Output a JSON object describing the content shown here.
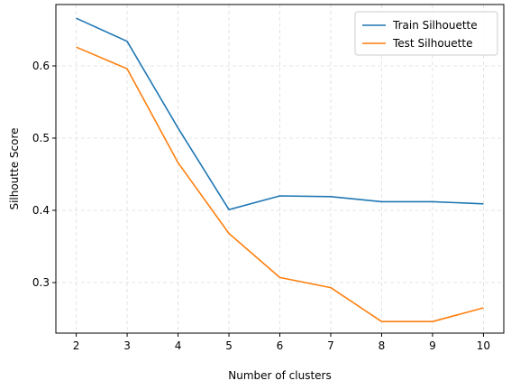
{
  "chart_data": {
    "type": "line",
    "title": "",
    "xlabel": "Number of clusters",
    "ylabel": "Silhoutte Score",
    "x": [
      2,
      3,
      4,
      5,
      6,
      7,
      8,
      9,
      10
    ],
    "xlim": [
      1.6,
      10.4
    ],
    "ylim": [
      0.23,
      0.685
    ],
    "xticks": [
      2,
      3,
      4,
      5,
      6,
      7,
      8,
      9,
      10
    ],
    "yticks": [
      0.3,
      0.4,
      0.5,
      0.6
    ],
    "ytick_labels": [
      "0.3",
      "0.4",
      "0.5",
      "0.6"
    ],
    "grid": true,
    "legend_position": "top-right",
    "series": [
      {
        "name": "Train Silhouette",
        "color": "#1f77b4",
        "values": [
          0.666,
          0.634,
          0.514,
          0.401,
          0.42,
          0.419,
          0.412,
          0.412,
          0.409
        ]
      },
      {
        "name": "Test Silhouette",
        "color": "#ff7f0e",
        "values": [
          0.626,
          0.596,
          0.466,
          0.368,
          0.307,
          0.293,
          0.246,
          0.246,
          0.265
        ]
      }
    ]
  }
}
